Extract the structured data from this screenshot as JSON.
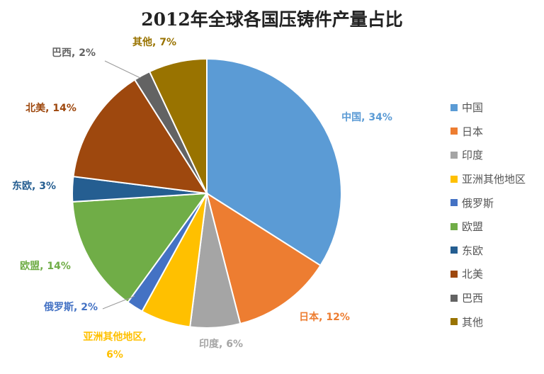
{
  "chart_data": {
    "type": "pie",
    "title": "2012年全球各国压铸件产量占比",
    "slices": [
      {
        "name": "中国",
        "value": 34,
        "label": "34%",
        "color": "#5B9BD5"
      },
      {
        "name": "日本",
        "value": 12,
        "label": "12%",
        "color": "#ED7D31"
      },
      {
        "name": "印度",
        "value": 6,
        "label": "6%",
        "color": "#A5A5A5"
      },
      {
        "name": "亚洲其他地区",
        "value": 6,
        "label": "6%",
        "label_name": "亚洲其他地区,",
        "color": "#FFC000"
      },
      {
        "name": "俄罗斯",
        "value": 2,
        "label": "2%",
        "color": "#4472C4"
      },
      {
        "name": "欧盟",
        "value": 14,
        "label": "14%",
        "color": "#70AD47"
      },
      {
        "name": "东欧",
        "value": 3,
        "label": "3%",
        "color": "#255E91"
      },
      {
        "name": "北美",
        "value": 14,
        "label": "14%",
        "color": "#9E480E"
      },
      {
        "name": "巴西",
        "value": 2,
        "label": "2%",
        "color": "#636363"
      },
      {
        "name": "其他",
        "value": 7,
        "label": "7%",
        "color": "#997300"
      }
    ],
    "legend_position": "right"
  }
}
